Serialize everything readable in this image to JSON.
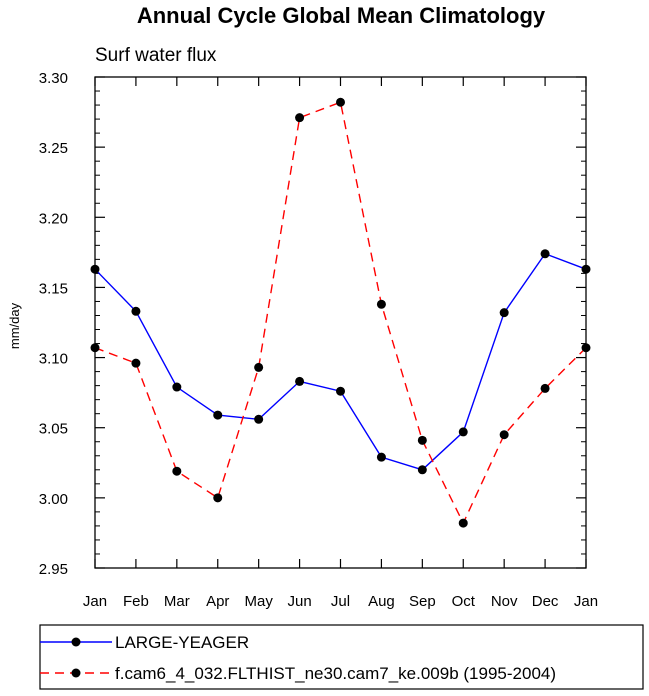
{
  "chart_data": {
    "type": "line",
    "title": "Annual Cycle Global Mean Climatology",
    "subtitle": "Surf water flux",
    "xlabel": "",
    "ylabel": "mm/day",
    "categories": [
      "Jan",
      "Feb",
      "Mar",
      "Apr",
      "May",
      "Jun",
      "Jul",
      "Aug",
      "Sep",
      "Oct",
      "Nov",
      "Dec",
      "Jan"
    ],
    "ylim": [
      2.95,
      3.3
    ],
    "yticks": [
      "2.95",
      "3.00",
      "3.05",
      "3.10",
      "3.15",
      "3.20",
      "3.25",
      "3.30"
    ],
    "grid": false,
    "legend_position": "bottom",
    "series": [
      {
        "name": "LARGE-YEAGER",
        "color": "#0000ff",
        "line_style": "solid",
        "marker": "filled-circle",
        "values": [
          3.163,
          3.133,
          3.079,
          3.059,
          3.056,
          3.083,
          3.076,
          3.029,
          3.02,
          3.047,
          3.132,
          3.174,
          3.163
        ]
      },
      {
        "name": "f.cam6_4_032.FLTHIST_ne30.cam7_ke.009b (1995-2004)",
        "color": "#ff0000",
        "line_style": "dashed",
        "marker": "filled-circle",
        "values": [
          3.107,
          3.096,
          3.019,
          3.0,
          3.093,
          3.271,
          3.282,
          3.138,
          3.041,
          2.982,
          3.045,
          3.078,
          3.107
        ]
      }
    ]
  }
}
